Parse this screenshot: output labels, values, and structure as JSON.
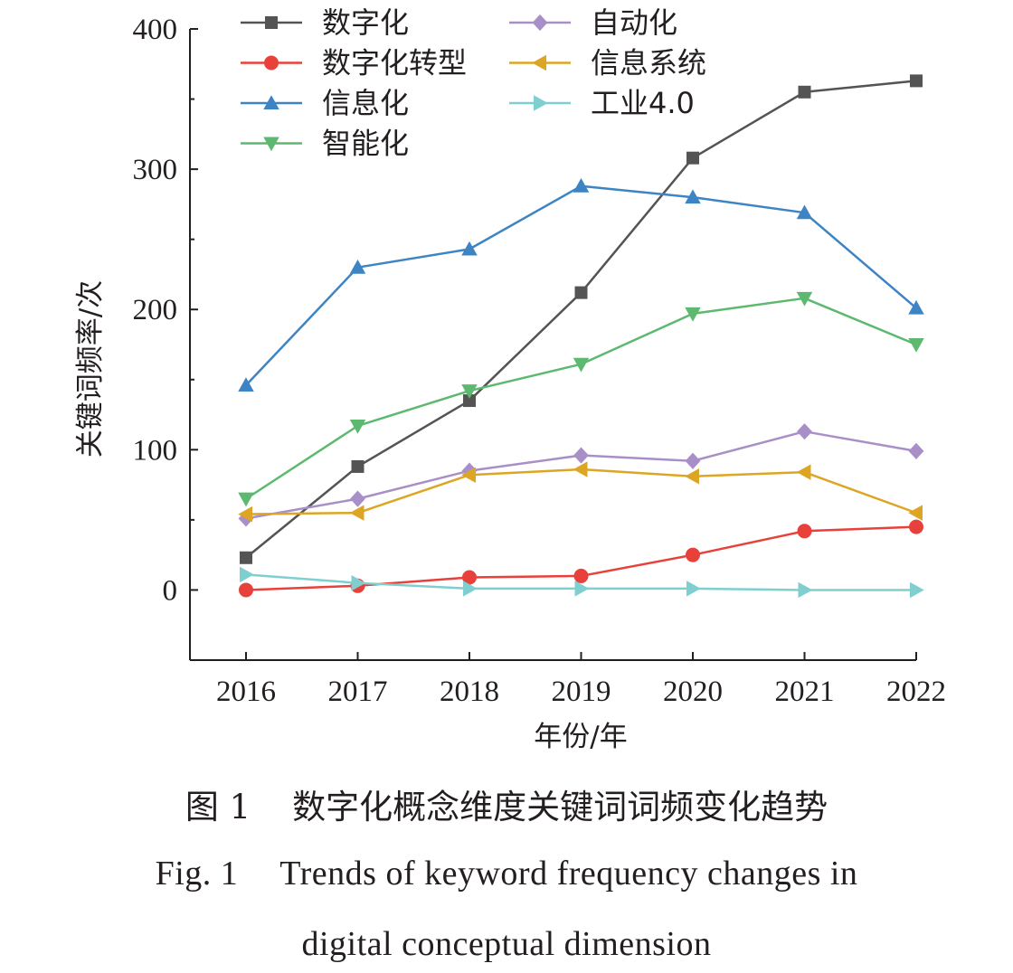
{
  "chart_data": {
    "type": "line",
    "x": [
      2016,
      2017,
      2018,
      2019,
      2020,
      2021,
      2022
    ],
    "xlabel": "年份/年",
    "ylabel": "关键词频率/次",
    "yticks": [
      0,
      100,
      200,
      300,
      400
    ],
    "ylim": [
      -50,
      400
    ],
    "grid": false,
    "legend_position": "top-left, two columns",
    "series": [
      {
        "name": "数字化",
        "marker": "square",
        "color": "#545454",
        "values": [
          23,
          88,
          135,
          212,
          308,
          355,
          363
        ]
      },
      {
        "name": "数字化转型",
        "marker": "circle",
        "color": "#e8403a",
        "values": [
          0,
          3,
          9,
          10,
          25,
          42,
          45
        ]
      },
      {
        "name": "信息化",
        "marker": "triangle-up",
        "color": "#3d84c4",
        "values": [
          146,
          230,
          243,
          288,
          280,
          269,
          201
        ]
      },
      {
        "name": "智能化",
        "marker": "triangle-down",
        "color": "#5cb96f",
        "values": [
          65,
          117,
          142,
          161,
          197,
          208,
          175
        ]
      },
      {
        "name": "自动化",
        "marker": "diamond",
        "color": "#a98fc8",
        "values": [
          51,
          65,
          85,
          96,
          92,
          113,
          99
        ]
      },
      {
        "name": "信息系统",
        "marker": "triangle-left",
        "color": "#dda524",
        "values": [
          54,
          55,
          82,
          86,
          81,
          84,
          55
        ]
      },
      {
        "name": "工业4.0",
        "marker": "triangle-right",
        "color": "#7fcfd0",
        "values": [
          11,
          5,
          1,
          1,
          1,
          0,
          0
        ]
      }
    ]
  },
  "caption": {
    "cn_number": "图 1",
    "cn_title": "数字化概念维度关键词词频变化趋势",
    "en_number": "Fig. 1",
    "en_title_line1": "Trends of keyword frequency changes in",
    "en_title_line2": "digital conceptual dimension"
  }
}
